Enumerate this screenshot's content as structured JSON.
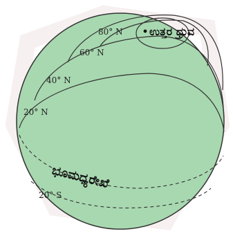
{
  "diagram": {
    "colors": {
      "globe_fill": "#a8d8b0",
      "globe_stroke": "#333333",
      "line": "#333333",
      "watermark": "#f0e4e4"
    },
    "labels": {
      "north_pole": "ಉತ್ತರ ಧ್ರುವ",
      "equator": "ಭೂಮಧ್ಯರೇಖೆ",
      "lat_80n": "80° N",
      "lat_60n": "60° N",
      "lat_40n": "40° N",
      "lat_20n": "20° N",
      "lat_20s": "20° S"
    },
    "pole_marker_icon": "dot-icon"
  }
}
